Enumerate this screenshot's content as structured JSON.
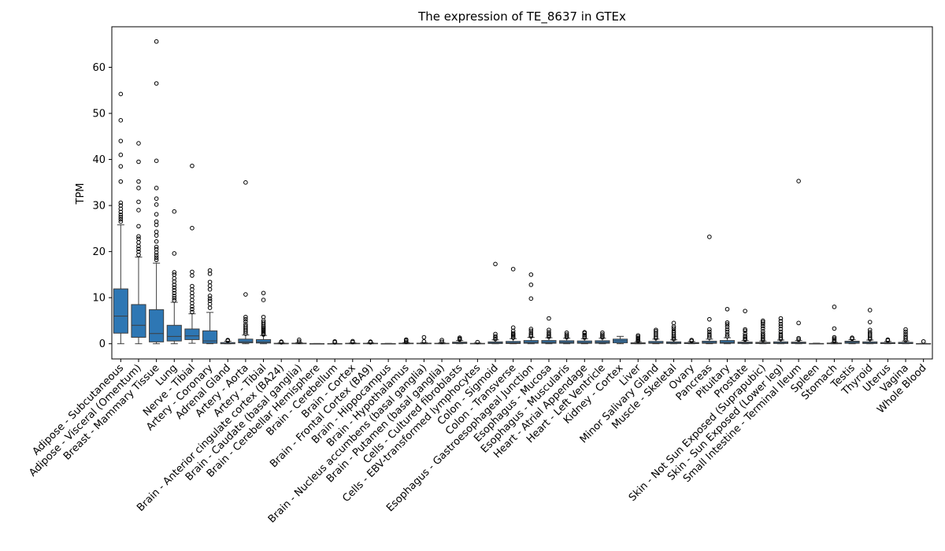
{
  "chart_data": {
    "type": "box",
    "title": "The expression of TE_8637 in GTEx",
    "xlabel": "",
    "ylabel": "TPM",
    "ylim": [
      -3.3,
      68.8
    ],
    "yticks": [
      0,
      10,
      20,
      30,
      40,
      50,
      60
    ],
    "grid": false,
    "legend": "none",
    "box_color": "#2e77b4",
    "categories": [
      "Adipose - Subcutaneous",
      "Adipose - Visceral (Omentum)",
      "Breast - Mammary Tissue",
      "Lung",
      "Nerve - Tibial",
      "Artery - Coronary",
      "Adrenal Gland",
      "Artery - Aorta",
      "Artery - Tibial",
      "Brain - Anterior cingulate cortex (BA24)",
      "Brain - Caudate (basal ganglia)",
      "Brain - Cerebellar Hemisphere",
      "Brain - Cerebellum",
      "Brain - Cortex",
      "Brain - Frontal Cortex (BA9)",
      "Brain - Hippocampus",
      "Brain - Hypothalamus",
      "Brain - Nucleus accumbens (basal ganglia)",
      "Brain - Putamen (basal ganglia)",
      "Cells - Cultured fibroblasts",
      "Cells - EBV-transformed lymphocytes",
      "Colon - Sigmoid",
      "Colon - Transverse",
      "Esophagus - Gastroesophageal Junction",
      "Esophagus - Mucosa",
      "Esophagus - Muscularis",
      "Heart - Atrial Appendage",
      "Heart - Left Ventricle",
      "Kidney - Cortex",
      "Liver",
      "Minor Salivary Gland",
      "Muscle - Skeletal",
      "Ovary",
      "Pancreas",
      "Pituitary",
      "Prostate",
      "Skin - Not Sun Exposed (Suprapubic)",
      "Skin - Sun Exposed (Lower leg)",
      "Small Intestine - Terminal Ileum",
      "Spleen",
      "Stomach",
      "Testis",
      "Thyroid",
      "Uterus",
      "Vagina",
      "Whole Blood"
    ],
    "boxes": [
      {
        "whislo": 0,
        "q1": 2.3,
        "med": 6.0,
        "q3": 11.9,
        "whishi": 25.8,
        "fliers": [
          26.5,
          27.0,
          27.5,
          28.0,
          28.6,
          29.3,
          30.0,
          30.6,
          35.2,
          38.5,
          41.0,
          44.0,
          48.5,
          54.2
        ]
      },
      {
        "whislo": 0,
        "q1": 1.4,
        "med": 4.0,
        "q3": 8.5,
        "whishi": 18.8,
        "fliers": [
          19.3,
          20.0,
          20.6,
          21.2,
          22.0,
          22.8,
          23.3,
          25.5,
          29.0,
          30.8,
          33.8,
          35.2,
          39.5,
          43.5
        ]
      },
      {
        "whislo": 0,
        "q1": 0.4,
        "med": 2.2,
        "q3": 7.4,
        "whishi": 17.5,
        "fliers": [
          18.2,
          18.7,
          19.2,
          19.8,
          20.5,
          21.0,
          22.2,
          23.5,
          24.3,
          25.8,
          26.5,
          28.1,
          30.2,
          31.5,
          33.8,
          39.7,
          56.5,
          65.6
        ]
      },
      {
        "whislo": 0,
        "q1": 0.6,
        "med": 1.6,
        "q3": 4.0,
        "whishi": 9.0,
        "fliers": [
          9.4,
          9.9,
          10.4,
          11.0,
          11.6,
          12.2,
          12.8,
          13.5,
          14.2,
          15.0,
          15.5,
          19.6,
          28.7
        ]
      },
      {
        "whislo": 0.1,
        "q1": 0.9,
        "med": 1.7,
        "q3": 3.2,
        "whishi": 6.5,
        "fliers": [
          6.9,
          7.5,
          8.1,
          8.8,
          9.5,
          10.3,
          11.0,
          11.8,
          12.5,
          14.8,
          15.6,
          25.1,
          38.6
        ]
      },
      {
        "whislo": 0,
        "q1": 0.1,
        "med": 0.6,
        "q3": 2.8,
        "whishi": 6.8,
        "fliers": [
          7.8,
          8.6,
          9.3,
          9.8,
          10.4,
          11.8,
          12.6,
          13.4,
          15.2,
          15.9
        ]
      },
      {
        "whislo": 0,
        "q1": 0.0,
        "med": 0.05,
        "q3": 0.25,
        "whishi": 0.55,
        "fliers": [
          0.65,
          0.8
        ]
      },
      {
        "whislo": 0,
        "q1": 0.2,
        "med": 0.45,
        "q3": 1.0,
        "whishi": 1.9,
        "fliers": [
          2.2,
          2.6,
          3.0,
          3.4,
          3.8,
          4.2,
          4.8,
          5.3,
          5.8,
          10.7,
          35.0
        ]
      },
      {
        "whislo": 0,
        "q1": 0.15,
        "med": 0.4,
        "q3": 0.9,
        "whishi": 1.8,
        "fliers": [
          2.0,
          2.3,
          2.6,
          2.9,
          3.2,
          3.5,
          3.8,
          4.2,
          4.6,
          5.0,
          5.8,
          9.5,
          11.0
        ]
      },
      {
        "whislo": 0,
        "q1": 0.0,
        "med": 0.02,
        "q3": 0.1,
        "whishi": 0.2,
        "fliers": [
          0.3,
          0.45
        ]
      },
      {
        "whislo": 0,
        "q1": 0.0,
        "med": 0.03,
        "q3": 0.12,
        "whishi": 0.25,
        "fliers": [
          0.45,
          0.85
        ]
      },
      {
        "whislo": 0,
        "q1": 0.0,
        "med": 0.0,
        "q3": 0.03,
        "whishi": 0.06,
        "fliers": []
      },
      {
        "whislo": 0,
        "q1": 0.0,
        "med": 0.0,
        "q3": 0.04,
        "whishi": 0.08,
        "fliers": [
          0.3,
          0.5
        ]
      },
      {
        "whislo": 0,
        "q1": 0.0,
        "med": 0.03,
        "q3": 0.1,
        "whishi": 0.2,
        "fliers": [
          0.35,
          0.55
        ]
      },
      {
        "whislo": 0,
        "q1": 0.0,
        "med": 0.03,
        "q3": 0.1,
        "whishi": 0.2,
        "fliers": [
          0.3,
          0.45
        ]
      },
      {
        "whislo": 0,
        "q1": 0.0,
        "med": 0.0,
        "q3": 0.04,
        "whishi": 0.08,
        "fliers": []
      },
      {
        "whislo": 0,
        "q1": 0.0,
        "med": 0.03,
        "q3": 0.12,
        "whishi": 0.25,
        "fliers": [
          0.4,
          0.7,
          0.9
        ]
      },
      {
        "whislo": 0,
        "q1": 0.0,
        "med": 0.03,
        "q3": 0.12,
        "whishi": 0.25,
        "fliers": [
          0.5,
          1.4
        ]
      },
      {
        "whislo": 0,
        "q1": 0.0,
        "med": 0.03,
        "q3": 0.1,
        "whishi": 0.22,
        "fliers": [
          0.4,
          0.8
        ]
      },
      {
        "whislo": 0,
        "q1": 0.05,
        "med": 0.15,
        "q3": 0.35,
        "whishi": 0.7,
        "fliers": [
          0.9,
          1.1,
          1.3
        ]
      },
      {
        "whislo": 0,
        "q1": 0.0,
        "med": 0.03,
        "q3": 0.08,
        "whishi": 0.18,
        "fliers": [
          0.35
        ]
      },
      {
        "whislo": 0,
        "q1": 0.05,
        "med": 0.15,
        "q3": 0.4,
        "whishi": 0.85,
        "fliers": [
          1.0,
          1.3,
          1.6,
          2.1,
          17.3
        ]
      },
      {
        "whislo": 0,
        "q1": 0.05,
        "med": 0.2,
        "q3": 0.5,
        "whishi": 1.1,
        "fliers": [
          1.3,
          1.5,
          1.8,
          2.0,
          2.3,
          2.8,
          3.5,
          16.2
        ]
      },
      {
        "whislo": 0,
        "q1": 0.1,
        "med": 0.3,
        "q3": 0.7,
        "whishi": 1.4,
        "fliers": [
          1.6,
          1.9,
          2.3,
          2.8,
          3.2,
          9.8,
          12.8,
          15.0
        ]
      },
      {
        "whislo": 0,
        "q1": 0.1,
        "med": 0.3,
        "q3": 0.7,
        "whishi": 1.3,
        "fliers": [
          1.5,
          1.8,
          2.1,
          2.5,
          3.0,
          5.5
        ]
      },
      {
        "whislo": 0,
        "q1": 0.1,
        "med": 0.3,
        "q3": 0.65,
        "whishi": 1.2,
        "fliers": [
          1.4,
          1.7,
          2.0,
          2.4
        ]
      },
      {
        "whislo": 0,
        "q1": 0.1,
        "med": 0.25,
        "q3": 0.6,
        "whishi": 1.1,
        "fliers": [
          1.3,
          1.6,
          1.9,
          2.3,
          2.5
        ]
      },
      {
        "whislo": 0,
        "q1": 0.1,
        "med": 0.3,
        "q3": 0.65,
        "whishi": 1.2,
        "fliers": [
          1.4,
          1.7,
          2.0,
          2.4
        ]
      },
      {
        "whislo": 0,
        "q1": 0.2,
        "med": 0.6,
        "q3": 1.0,
        "whishi": 1.6,
        "fliers": []
      },
      {
        "whislo": 0,
        "q1": 0.0,
        "med": 0.05,
        "q3": 0.2,
        "whishi": 0.45,
        "fliers": [
          0.6,
          0.8,
          1.0,
          1.2,
          1.5,
          1.8
        ]
      },
      {
        "whislo": 0,
        "q1": 0.1,
        "med": 0.2,
        "q3": 0.5,
        "whishi": 1.0,
        "fliers": [
          1.2,
          1.5,
          1.9,
          2.3,
          2.7,
          3.0
        ]
      },
      {
        "whislo": 0,
        "q1": 0.05,
        "med": 0.15,
        "q3": 0.4,
        "whishi": 0.85,
        "fliers": [
          1.0,
          1.3,
          1.6,
          2.0,
          2.4,
          2.8,
          3.3,
          3.7,
          4.5
        ]
      },
      {
        "whislo": 0,
        "q1": 0.03,
        "med": 0.1,
        "q3": 0.25,
        "whishi": 0.5,
        "fliers": [
          0.6,
          0.8
        ]
      },
      {
        "whislo": 0,
        "q1": 0.1,
        "med": 0.25,
        "q3": 0.55,
        "whishi": 1.0,
        "fliers": [
          1.3,
          1.7,
          2.1,
          2.6,
          3.1,
          5.3,
          23.2
        ]
      },
      {
        "whislo": 0,
        "q1": 0.1,
        "med": 0.3,
        "q3": 0.7,
        "whishi": 1.3,
        "fliers": [
          1.6,
          2.0,
          2.6,
          3.1,
          3.7,
          4.2,
          4.6,
          7.5
        ]
      },
      {
        "whislo": 0,
        "q1": 0.05,
        "med": 0.15,
        "q3": 0.35,
        "whishi": 0.7,
        "fliers": [
          0.9,
          1.1,
          1.4,
          1.7,
          2.2,
          2.8,
          3.1,
          7.1
        ]
      },
      {
        "whislo": 0,
        "q1": 0.05,
        "med": 0.15,
        "q3": 0.3,
        "whishi": 0.6,
        "fliers": [
          0.8,
          1.1,
          1.4,
          1.8,
          2.2,
          2.7,
          3.3,
          3.8,
          4.3,
          4.7,
          5.0
        ]
      },
      {
        "whislo": 0,
        "q1": 0.05,
        "med": 0.15,
        "q3": 0.4,
        "whishi": 0.8,
        "fliers": [
          1.0,
          1.3,
          1.7,
          2.1,
          2.6,
          3.2,
          3.8,
          4.3,
          4.9,
          5.5
        ]
      },
      {
        "whislo": 0,
        "q1": 0.05,
        "med": 0.15,
        "q3": 0.35,
        "whishi": 0.7,
        "fliers": [
          0.9,
          1.2,
          4.5,
          35.3
        ]
      },
      {
        "whislo": 0,
        "q1": 0.0,
        "med": 0.02,
        "q3": 0.06,
        "whishi": 0.12,
        "fliers": []
      },
      {
        "whislo": 0,
        "q1": 0.0,
        "med": 0.05,
        "q3": 0.15,
        "whishi": 0.3,
        "fliers": [
          0.5,
          0.8,
          1.1,
          1.4,
          3.3,
          8.0
        ]
      },
      {
        "whislo": 0,
        "q1": 0.1,
        "med": 0.3,
        "q3": 0.55,
        "whishi": 0.9,
        "fliers": [
          1.1,
          1.3
        ]
      },
      {
        "whislo": 0,
        "q1": 0.05,
        "med": 0.15,
        "q3": 0.4,
        "whishi": 0.8,
        "fliers": [
          1.0,
          1.3,
          1.7,
          2.1,
          2.5,
          3.0,
          4.7,
          7.3
        ]
      },
      {
        "whislo": 0,
        "q1": 0.03,
        "med": 0.1,
        "q3": 0.25,
        "whishi": 0.5,
        "fliers": [
          0.7,
          0.9
        ]
      },
      {
        "whislo": 0,
        "q1": 0.03,
        "med": 0.1,
        "q3": 0.3,
        "whishi": 0.6,
        "fliers": [
          0.8,
          1.2,
          1.6,
          2.1,
          2.6,
          3.1
        ]
      },
      {
        "whislo": 0,
        "q1": 0.0,
        "med": 0.01,
        "q3": 0.04,
        "whishi": 0.08,
        "fliers": [
          0.5
        ]
      }
    ]
  }
}
